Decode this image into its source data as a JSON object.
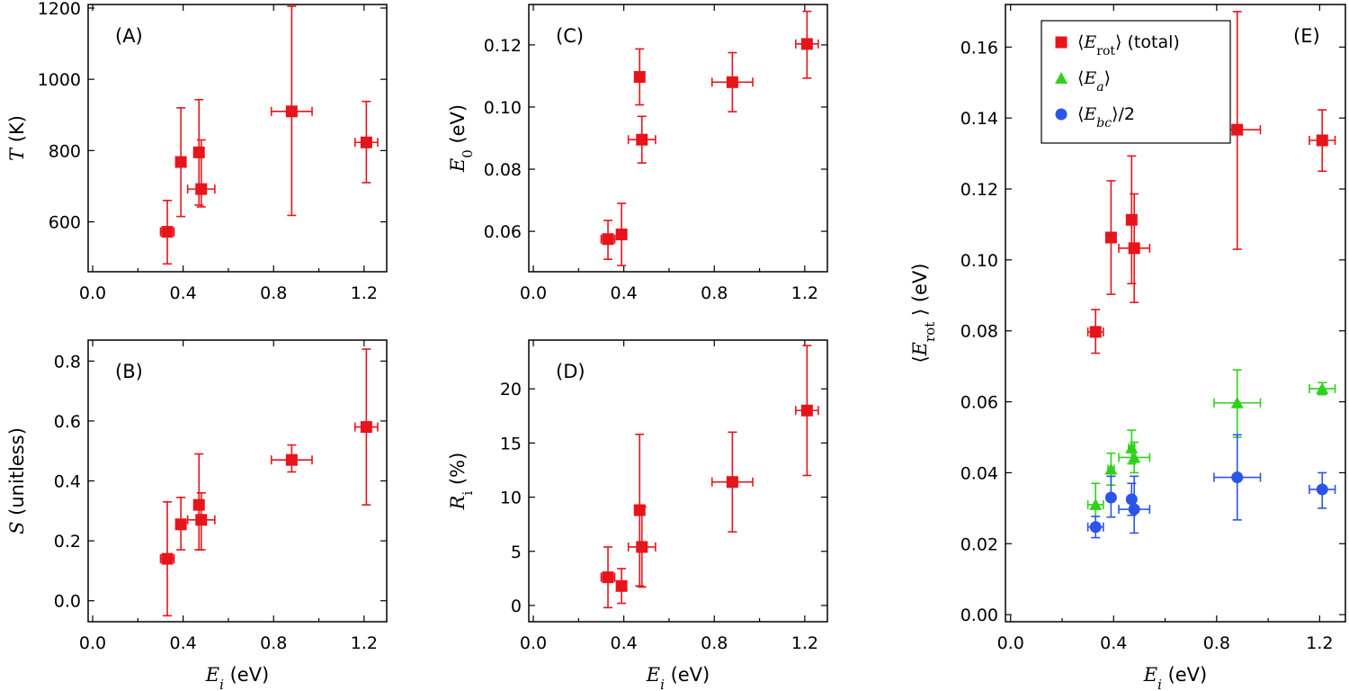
{
  "chart_data": [
    {
      "id": "A",
      "type": "scatter",
      "panel_label": "(A)",
      "xlabel_var": "E",
      "xlabel_sub": "i",
      "xlabel_unit": "(eV)",
      "ylabel_var": "T",
      "ylabel_sub": "",
      "ylabel_unit": "(K)",
      "xlim": [
        -0.02,
        1.3
      ],
      "ylim": [
        460,
        1210
      ],
      "xticks": [
        0.0,
        0.4,
        0.8,
        1.2
      ],
      "xtick_labels": [
        "0.0",
        "0.4",
        "0.8",
        "1.2"
      ],
      "yticks": [
        600,
        800,
        1000,
        1200
      ],
      "ytick_labels": [
        "600",
        "800",
        "1000",
        "1200"
      ],
      "show_xlabel": false,
      "series": [
        {
          "name": "T",
          "color": "#e8141b",
          "marker": "square",
          "points": [
            {
              "x": 0.33,
              "y": 572,
              "xerr": 0.03,
              "yerr_lo": 90,
              "yerr_hi": 88
            },
            {
              "x": 0.39,
              "y": 768,
              "xerr": 0.012,
              "yerr_lo": 153,
              "yerr_hi": 152
            },
            {
              "x": 0.47,
              "y": 795,
              "xerr": 0.012,
              "yerr_lo": 148,
              "yerr_hi": 148
            },
            {
              "x": 0.48,
              "y": 692,
              "xerr": 0.06,
              "yerr_lo": 50,
              "yerr_hi": 138
            },
            {
              "x": 0.88,
              "y": 910,
              "xerr": 0.09,
              "yerr_lo": 292,
              "yerr_hi": 295
            },
            {
              "x": 1.21,
              "y": 823,
              "xerr": 0.05,
              "yerr_lo": 113,
              "yerr_hi": 115
            }
          ]
        }
      ]
    },
    {
      "id": "B",
      "type": "scatter",
      "panel_label": "(B)",
      "xlabel_var": "E",
      "xlabel_sub": "i",
      "xlabel_unit": "(eV)",
      "ylabel_var": "S",
      "ylabel_sub": "",
      "ylabel_unit": "(unitless)",
      "xlim": [
        -0.02,
        1.3
      ],
      "ylim": [
        -0.07,
        0.87
      ],
      "xticks": [
        0.0,
        0.4,
        0.8,
        1.2
      ],
      "xtick_labels": [
        "0.0",
        "0.4",
        "0.8",
        "1.2"
      ],
      "yticks": [
        0.0,
        0.2,
        0.4,
        0.6,
        0.8
      ],
      "ytick_labels": [
        "0.0",
        "0.2",
        "0.4",
        "0.6",
        "0.8"
      ],
      "show_xlabel": true,
      "series": [
        {
          "name": "S",
          "color": "#e8141b",
          "marker": "square",
          "points": [
            {
              "x": 0.33,
              "y": 0.14,
              "xerr": 0.03,
              "yerr_lo": 0.19,
              "yerr_hi": 0.19
            },
            {
              "x": 0.39,
              "y": 0.255,
              "xerr": 0.012,
              "yerr_lo": 0.085,
              "yerr_hi": 0.09
            },
            {
              "x": 0.47,
              "y": 0.32,
              "xerr": 0.012,
              "yerr_lo": 0.15,
              "yerr_hi": 0.17
            },
            {
              "x": 0.48,
              "y": 0.27,
              "xerr": 0.06,
              "yerr_lo": 0.1,
              "yerr_hi": 0.09
            },
            {
              "x": 0.88,
              "y": 0.47,
              "xerr": 0.09,
              "yerr_lo": 0.04,
              "yerr_hi": 0.05
            },
            {
              "x": 1.21,
              "y": 0.58,
              "xerr": 0.05,
              "yerr_lo": 0.26,
              "yerr_hi": 0.26
            }
          ]
        }
      ]
    },
    {
      "id": "C",
      "type": "scatter",
      "panel_label": "(C)",
      "xlabel_var": "E",
      "xlabel_sub": "i",
      "xlabel_unit": "(eV)",
      "ylabel_var": "E",
      "ylabel_sub": "0",
      "ylabel_unit": "(eV)",
      "xlim": [
        -0.02,
        1.3
      ],
      "ylim": [
        0.047,
        0.133
      ],
      "xticks": [
        0.0,
        0.4,
        0.8,
        1.2
      ],
      "xtick_labels": [
        "0.0",
        "0.4",
        "0.8",
        "1.2"
      ],
      "yticks": [
        0.06,
        0.08,
        0.1,
        0.12
      ],
      "ytick_labels": [
        "0.06",
        "0.08",
        "0.10",
        "0.12"
      ],
      "show_xlabel": false,
      "series": [
        {
          "name": "E0",
          "color": "#e8141b",
          "marker": "square",
          "points": [
            {
              "x": 0.33,
              "y": 0.0575,
              "xerr": 0.03,
              "yerr_lo": 0.0065,
              "yerr_hi": 0.006
            },
            {
              "x": 0.39,
              "y": 0.059,
              "xerr": 0.012,
              "yerr_lo": 0.01,
              "yerr_hi": 0.01
            },
            {
              "x": 0.47,
              "y": 0.1097,
              "xerr": 0.012,
              "yerr_lo": 0.009,
              "yerr_hi": 0.009
            },
            {
              "x": 0.48,
              "y": 0.0895,
              "xerr": 0.06,
              "yerr_lo": 0.0075,
              "yerr_hi": 0.0075
            },
            {
              "x": 0.88,
              "y": 0.108,
              "xerr": 0.09,
              "yerr_lo": 0.0095,
              "yerr_hi": 0.0095
            },
            {
              "x": 1.21,
              "y": 0.1203,
              "xerr": 0.05,
              "yerr_lo": 0.011,
              "yerr_hi": 0.0105
            }
          ]
        }
      ]
    },
    {
      "id": "D",
      "type": "scatter",
      "panel_label": "(D)",
      "xlabel_var": "E",
      "xlabel_sub": "i",
      "xlabel_unit": "(eV)",
      "ylabel_var": "R",
      "ylabel_sub": "i",
      "ylabel_unit": "(%)",
      "xlim": [
        -0.02,
        1.3
      ],
      "ylim": [
        -1.5,
        24.5
      ],
      "xticks": [
        0.0,
        0.4,
        0.8,
        1.2
      ],
      "xtick_labels": [
        "0.0",
        "0.4",
        "0.8",
        "1.2"
      ],
      "yticks": [
        0,
        5,
        10,
        15,
        20
      ],
      "ytick_labels": [
        "0",
        "5",
        "10",
        "15",
        "20"
      ],
      "show_xlabel": true,
      "series": [
        {
          "name": "Ri",
          "color": "#e8141b",
          "marker": "square",
          "points": [
            {
              "x": 0.33,
              "y": 2.6,
              "xerr": 0.03,
              "yerr_lo": 2.8,
              "yerr_hi": 2.8
            },
            {
              "x": 0.39,
              "y": 1.8,
              "xerr": 0.012,
              "yerr_lo": 1.6,
              "yerr_hi": 1.6
            },
            {
              "x": 0.47,
              "y": 8.8,
              "xerr": 0.012,
              "yerr_lo": 7.0,
              "yerr_hi": 7.0
            },
            {
              "x": 0.48,
              "y": 5.4,
              "xerr": 0.06,
              "yerr_lo": 3.7,
              "yerr_hi": 3.7
            },
            {
              "x": 0.88,
              "y": 11.4,
              "xerr": 0.09,
              "yerr_lo": 4.6,
              "yerr_hi": 4.6
            },
            {
              "x": 1.21,
              "y": 18.0,
              "xerr": 0.05,
              "yerr_lo": 6.0,
              "yerr_hi": 6.0
            }
          ]
        }
      ]
    },
    {
      "id": "E",
      "type": "scatter",
      "panel_label": "(E)",
      "xlabel_var": "E",
      "xlabel_sub": "i",
      "xlabel_unit": "(eV)",
      "ylabel_var": "E",
      "ylabel_sub": "rot",
      "ylabel_unit": "(eV)",
      "ylabel_brackets": true,
      "xlim": [
        -0.02,
        1.3
      ],
      "ylim": [
        -0.002,
        0.172
      ],
      "xticks": [
        0.0,
        0.4,
        0.8,
        1.2
      ],
      "xtick_labels": [
        "0.0",
        "0.4",
        "0.8",
        "1.2"
      ],
      "yticks": [
        0.0,
        0.02,
        0.04,
        0.06,
        0.08,
        0.1,
        0.12,
        0.14,
        0.16
      ],
      "ytick_labels": [
        "0.00",
        "0.02",
        "0.04",
        "0.06",
        "0.08",
        "0.10",
        "0.12",
        "0.14",
        "0.16"
      ],
      "show_xlabel": true,
      "legend": {
        "position": "top-left",
        "entries": [
          {
            "symbol": "〈",
            "var": "E",
            "sub": "rot",
            "close": "〉",
            "suffix": " (total)"
          },
          {
            "symbol": "〈",
            "var": "E",
            "sub": "a",
            "close": "〉",
            "suffix": ""
          },
          {
            "symbol": "〈",
            "var": "E",
            "sub": "bc",
            "close": "〉",
            "suffix": "/2"
          }
        ]
      },
      "series": [
        {
          "name": "Erot (total)",
          "color": "#e8141b",
          "marker": "square",
          "points": [
            {
              "x": 0.33,
              "y": 0.0797,
              "xerr": 0.03,
              "yerr_lo": 0.006,
              "yerr_hi": 0.0063
            },
            {
              "x": 0.39,
              "y": 0.1063,
              "xerr": 0.012,
              "yerr_lo": 0.016,
              "yerr_hi": 0.016
            },
            {
              "x": 0.47,
              "y": 0.1113,
              "xerr": 0.012,
              "yerr_lo": 0.018,
              "yerr_hi": 0.018
            },
            {
              "x": 0.48,
              "y": 0.1033,
              "xerr": 0.06,
              "yerr_lo": 0.0153,
              "yerr_hi": 0.0153
            },
            {
              "x": 0.88,
              "y": 0.1367,
              "xerr": 0.09,
              "yerr_lo": 0.0337,
              "yerr_hi": 0.0333
            },
            {
              "x": 1.21,
              "y": 0.1337,
              "xerr": 0.05,
              "yerr_lo": 0.0087,
              "yerr_hi": 0.0086
            }
          ]
        },
        {
          "name": "Ea",
          "color": "#2fd11a",
          "marker": "triangle",
          "points": [
            {
              "x": 0.33,
              "y": 0.031,
              "xerr": 0.03,
              "yerr_lo": 0.0055,
              "yerr_hi": 0.006
            },
            {
              "x": 0.39,
              "y": 0.041,
              "xerr": 0.012,
              "yerr_lo": 0.0045,
              "yerr_hi": 0.0045
            },
            {
              "x": 0.47,
              "y": 0.047,
              "xerr": 0.012,
              "yerr_lo": 0.0045,
              "yerr_hi": 0.005
            },
            {
              "x": 0.48,
              "y": 0.0443,
              "xerr": 0.06,
              "yerr_lo": 0.0043,
              "yerr_hi": 0.0043
            },
            {
              "x": 0.88,
              "y": 0.0597,
              "xerr": 0.09,
              "yerr_lo": 0.0097,
              "yerr_hi": 0.0093
            },
            {
              "x": 1.21,
              "y": 0.0637,
              "xerr": 0.05,
              "yerr_lo": 0.0017,
              "yerr_hi": 0.0017
            }
          ]
        },
        {
          "name": "Ebc/2",
          "color": "#2b55e6",
          "marker": "circle",
          "points": [
            {
              "x": 0.33,
              "y": 0.0247,
              "xerr": 0.03,
              "yerr_lo": 0.003,
              "yerr_hi": 0.003
            },
            {
              "x": 0.39,
              "y": 0.033,
              "xerr": 0.012,
              "yerr_lo": 0.0055,
              "yerr_hi": 0.006
            },
            {
              "x": 0.47,
              "y": 0.0325,
              "xerr": 0.012,
              "yerr_lo": 0.0045,
              "yerr_hi": 0.0045
            },
            {
              "x": 0.48,
              "y": 0.0297,
              "xerr": 0.06,
              "yerr_lo": 0.0067,
              "yerr_hi": 0.0093
            },
            {
              "x": 0.88,
              "y": 0.0387,
              "xerr": 0.09,
              "yerr_lo": 0.012,
              "yerr_hi": 0.012
            },
            {
              "x": 1.21,
              "y": 0.0353,
              "xerr": 0.05,
              "yerr_lo": 0.0053,
              "yerr_hi": 0.0047
            }
          ]
        }
      ]
    }
  ]
}
